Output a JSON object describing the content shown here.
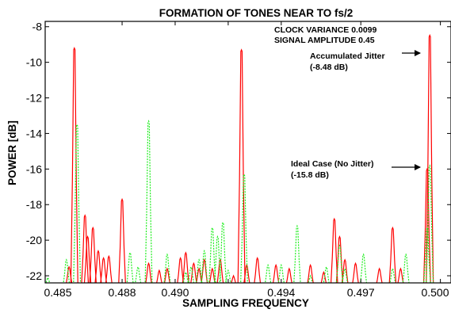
{
  "chart_data": {
    "type": "line",
    "title": "FORMATION OF TONES NEAR TO fs/2",
    "xlabel": "SAMPLING FREQUENCY",
    "ylabel": "POWER [dB]",
    "xlim": [
      0.4851,
      0.5004
    ],
    "ylim": [
      -22.4,
      -7.7
    ],
    "x_ticks": [
      0.485,
      0.488,
      0.49,
      0.492,
      0.494,
      0.497,
      0.5
    ],
    "x_tick_labels": [
      "0.485",
      "0.488",
      "0.490",
      "",
      "0.494",
      "0.497",
      "0.500"
    ],
    "y_ticks": [
      -8,
      -10,
      -12,
      -14,
      -16,
      -18,
      -20,
      -22
    ],
    "grid": false,
    "colors": {
      "series_red": "#ff0000",
      "series_green": "#22ee22",
      "axis": "#000000"
    },
    "info_lines": [
      "CLOCK VARIANCE 0.0099",
      "SIGNAL AMPLITUDE 0.45"
    ],
    "annotations": [
      {
        "lines": [
          "Accumulated Jitter",
          "(-8.48 dB)"
        ],
        "x": 0.4997,
        "y": -9.6
      },
      {
        "lines": [
          "Ideal Case (No Jitter)",
          "(-15.8 dB)"
        ],
        "x": 0.4997,
        "y": -15.8
      }
    ],
    "series": [
      {
        "color": "#ff0000",
        "peaks": [
          [
            0.486,
            -21.5
          ],
          [
            0.4862,
            -9.2
          ],
          [
            0.4866,
            -18.6
          ],
          [
            0.4867,
            -19.8
          ],
          [
            0.4869,
            -19.3
          ],
          [
            0.4871,
            -20.6
          ],
          [
            0.4873,
            -21.0
          ],
          [
            0.4875,
            -20.9
          ],
          [
            0.488,
            -17.7
          ],
          [
            0.489,
            -21.3
          ],
          [
            0.4894,
            -21.7
          ],
          [
            0.4897,
            -21.6
          ],
          [
            0.4902,
            -21.0
          ],
          [
            0.4904,
            -20.7
          ],
          [
            0.4907,
            -21.3
          ],
          [
            0.4909,
            -21.6
          ],
          [
            0.4911,
            -21.1
          ],
          [
            0.4914,
            -21.6
          ],
          [
            0.4917,
            -21.1
          ],
          [
            0.4922,
            -22.0
          ],
          [
            0.4925,
            -9.3
          ],
          [
            0.4927,
            -21.4
          ],
          [
            0.4931,
            -21.0
          ],
          [
            0.4938,
            -21.4
          ],
          [
            0.4943,
            -21.6
          ],
          [
            0.4951,
            -21.4
          ],
          [
            0.4956,
            -21.8
          ],
          [
            0.496,
            -18.8
          ],
          [
            0.4962,
            -19.8
          ],
          [
            0.4964,
            -21.1
          ],
          [
            0.4968,
            -21.3
          ],
          [
            0.4977,
            -21.6
          ],
          [
            0.4982,
            -19.3
          ],
          [
            0.4985,
            -21.6
          ],
          [
            0.4995,
            -16.0
          ],
          [
            0.4996,
            -8.48
          ]
        ]
      },
      {
        "color": "#22ee22",
        "peaks": [
          [
            0.4852,
            -22.1
          ],
          [
            0.4859,
            -21.1
          ],
          [
            0.4863,
            -13.5
          ],
          [
            0.4883,
            -20.7
          ],
          [
            0.4886,
            -21.5
          ],
          [
            0.489,
            -13.3
          ],
          [
            0.4897,
            -20.8
          ],
          [
            0.4904,
            -21.8
          ],
          [
            0.4906,
            -21.5
          ],
          [
            0.4909,
            -21.1
          ],
          [
            0.4911,
            -20.6
          ],
          [
            0.4914,
            -19.3
          ],
          [
            0.4916,
            -19.8
          ],
          [
            0.4918,
            -19.0
          ],
          [
            0.492,
            -21.7
          ],
          [
            0.4926,
            -16.3
          ],
          [
            0.4935,
            -21.4
          ],
          [
            0.494,
            -21.4
          ],
          [
            0.4946,
            -19.2
          ],
          [
            0.4951,
            -22.0
          ],
          [
            0.4957,
            -21.5
          ],
          [
            0.4962,
            -20.3
          ],
          [
            0.4964,
            -21.6
          ],
          [
            0.4971,
            -20.8
          ],
          [
            0.4982,
            -21.6
          ],
          [
            0.4987,
            -20.8
          ],
          [
            0.4995,
            -19.3
          ],
          [
            0.4996,
            -15.8
          ]
        ]
      }
    ]
  }
}
